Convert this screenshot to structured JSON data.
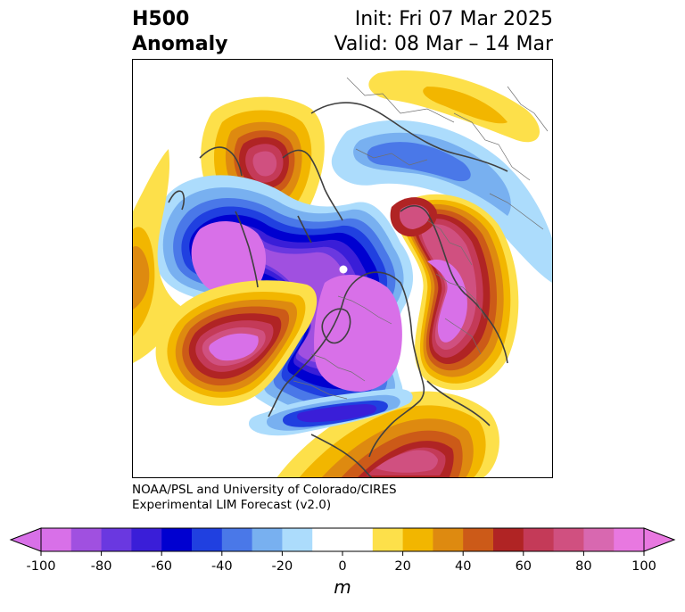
{
  "title": {
    "left_line1": "H500",
    "left_line2": "Anomaly",
    "right_line1": "Init: Fri 07 Mar 2025",
    "right_line2": "Valid: 08 Mar – 14 Mar"
  },
  "credit": {
    "line1": "NOAA/PSL and University of Colorado/CIRES",
    "line2": "Experimental LIM Forecast (v2.0)"
  },
  "colorbar": {
    "unit": "m",
    "ticks": [
      "-100",
      "-80",
      "-60",
      "-40",
      "-20",
      "0",
      "20",
      "40",
      "60",
      "80",
      "100"
    ],
    "colors": [
      "#d870e8",
      "#a050e0",
      "#6a38e0",
      "#3a1ed8",
      "#0000d0",
      "#2040e0",
      "#4a78e8",
      "#78b0f0",
      "#acdcfc",
      "#ffffff",
      "#ffffff",
      "#fde04a",
      "#f2b600",
      "#de8a10",
      "#cc5a18",
      "#b02424",
      "#c43a58",
      "#d05080",
      "#d868b0",
      "#e878e0"
    ],
    "under_color": "#d870e8",
    "over_color": "#e878e0"
  }
}
